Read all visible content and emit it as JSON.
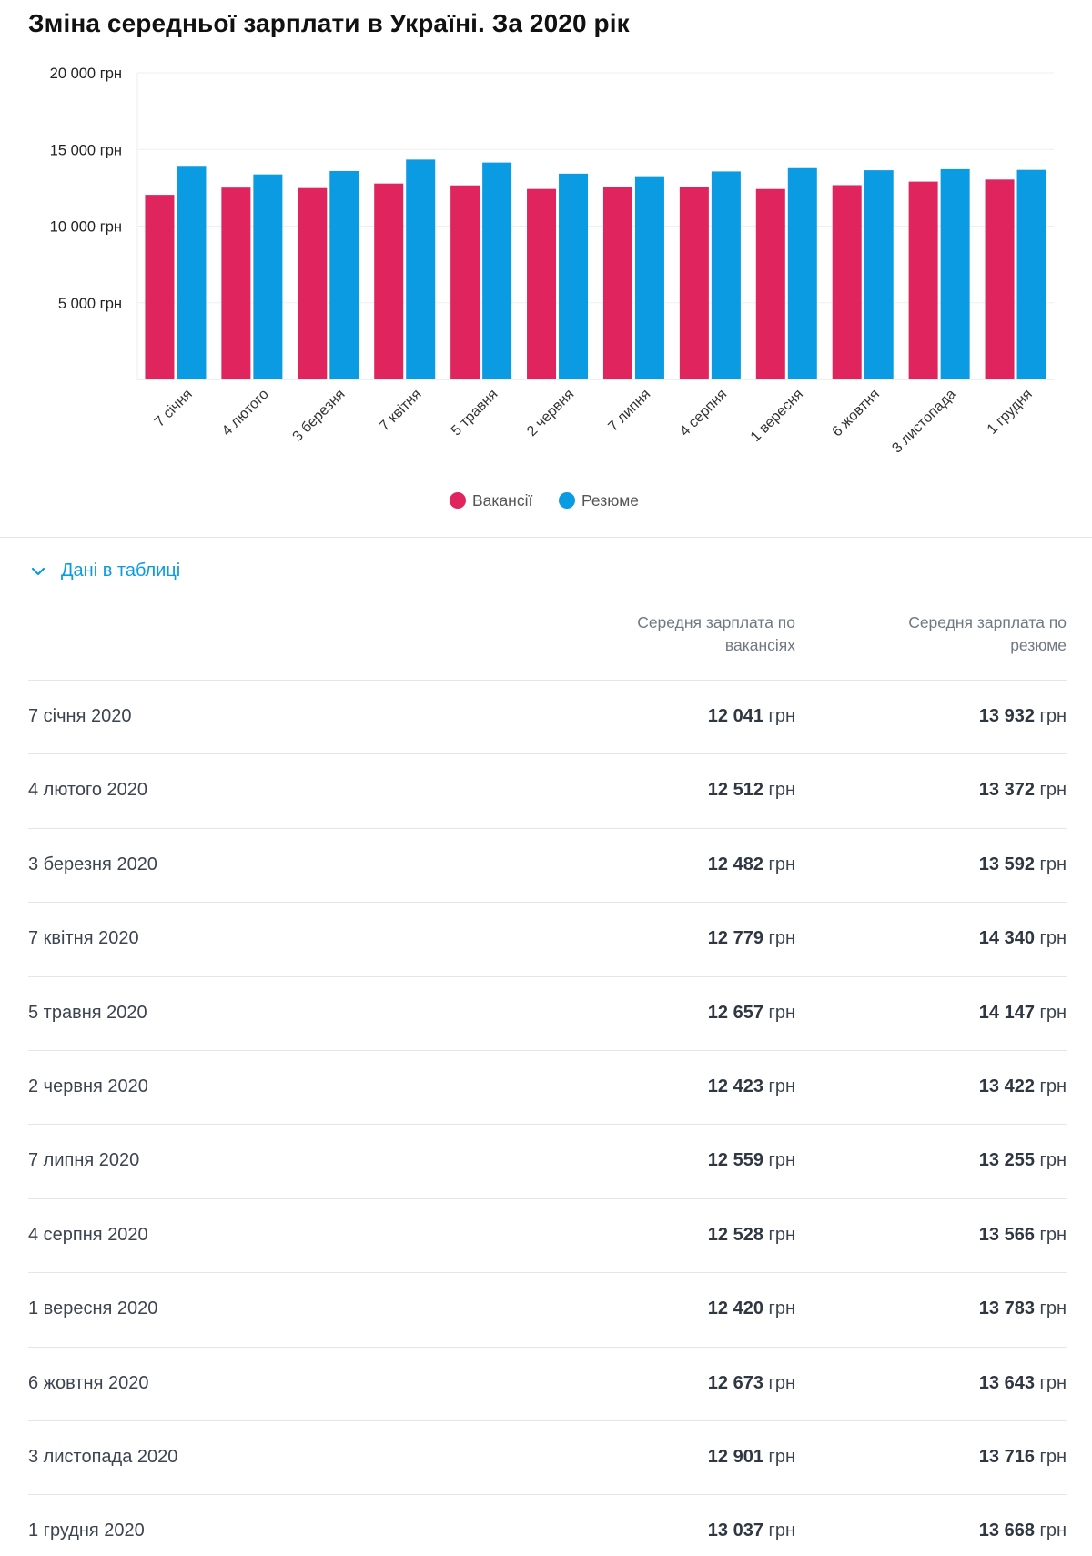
{
  "title": "Зміна середньої зарплати в Україні. За 2020 рік",
  "chart_data": {
    "type": "bar",
    "title": "Зміна середньої зарплати в Україні. За 2020 рік",
    "categories": [
      "7 січня",
      "4 лютого",
      "3 березня",
      "7 квітня",
      "5 травня",
      "2 червня",
      "7 липня",
      "4 серпня",
      "1 вересня",
      "6 жовтня",
      "3 листопада",
      "1 грудня"
    ],
    "series": [
      {
        "name": "Вакансії",
        "color": "#e0245e",
        "values": [
          12041,
          12512,
          12482,
          12779,
          12657,
          12423,
          12559,
          12528,
          12420,
          12673,
          12901,
          13037
        ]
      },
      {
        "name": "Резюме",
        "color": "#0a9be3",
        "values": [
          13932,
          13372,
          13592,
          14340,
          14147,
          13422,
          13255,
          13566,
          13783,
          13643,
          13716,
          13668
        ]
      }
    ],
    "ylim": [
      0,
      20000
    ],
    "yticks": [
      5000,
      10000,
      15000,
      20000
    ],
    "ytick_labels": [
      "5 000 грн",
      "10 000 грн",
      "15 000 грн",
      "20 000 грн"
    ],
    "grid": true,
    "legend": "bottom-center",
    "xlabel": "",
    "ylabel": ""
  },
  "table": {
    "toggle_label": "Дані в таблиці",
    "toggle_icon": "chevron-down-icon",
    "headers": {
      "vacancies": "Середня зарплата по вакансіях",
      "resumes": "Середня зарплата по резюме"
    },
    "currency": "грн",
    "rows": [
      {
        "date": "7 січня 2020",
        "vacancies": "12 041",
        "resumes": "13 932"
      },
      {
        "date": "4 лютого 2020",
        "vacancies": "12 512",
        "resumes": "13 372"
      },
      {
        "date": "3 березня 2020",
        "vacancies": "12 482",
        "resumes": "13 592"
      },
      {
        "date": "7 квітня 2020",
        "vacancies": "12 779",
        "resumes": "14 340"
      },
      {
        "date": "5 травня 2020",
        "vacancies": "12 657",
        "resumes": "14 147"
      },
      {
        "date": "2 червня 2020",
        "vacancies": "12 423",
        "resumes": "13 422"
      },
      {
        "date": "7 липня 2020",
        "vacancies": "12 559",
        "resumes": "13 255"
      },
      {
        "date": "4 серпня 2020",
        "vacancies": "12 528",
        "resumes": "13 566"
      },
      {
        "date": "1 вересня 2020",
        "vacancies": "12 420",
        "resumes": "13 783"
      },
      {
        "date": "6 жовтня 2020",
        "vacancies": "12 673",
        "resumes": "13 643"
      },
      {
        "date": "3 листопада 2020",
        "vacancies": "12 901",
        "resumes": "13 716"
      },
      {
        "date": "1 грудня 2020",
        "vacancies": "13 037",
        "resumes": "13 668"
      }
    ]
  }
}
